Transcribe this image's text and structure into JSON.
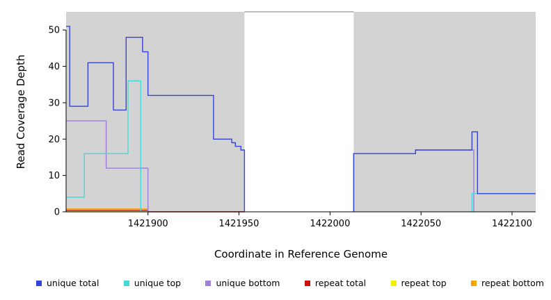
{
  "chart_data": {
    "type": "line",
    "step_style": "post",
    "title": "",
    "xlabel": "Coordinate in Reference Genome",
    "ylabel": "Read Coverage Depth",
    "xlim": [
      1421855,
      1422113
    ],
    "ylim": [
      0,
      55
    ],
    "x_ticks": [
      1421900,
      1421950,
      1422000,
      1422050,
      1422100
    ],
    "y_ticks": [
      0,
      10,
      20,
      30,
      40,
      50
    ],
    "grid": false,
    "background": "#ffffff",
    "axis_color": "#000000",
    "shaded_regions": [
      {
        "x0": 1421855,
        "x1": 1421953,
        "color": "#d3d3d3"
      },
      {
        "x0": 1422013,
        "x1": 1422113,
        "color": "#d3d3d3"
      }
    ],
    "gap_top_border": {
      "x0": 1421953,
      "x1": 1422013,
      "color": "#777777"
    },
    "series": [
      {
        "name": "unique total",
        "color": "#3344dd",
        "segments": [
          [
            [
              1421855,
              51
            ],
            [
              1421857,
              29
            ],
            [
              1421867,
              41
            ],
            [
              1421881,
              28
            ],
            [
              1421888,
              48
            ],
            [
              1421897,
              44
            ],
            [
              1421900,
              32
            ],
            [
              1421936,
              20
            ],
            [
              1421946,
              19
            ],
            [
              1421948,
              18
            ],
            [
              1421951,
              17
            ],
            [
              1421953,
              0
            ]
          ],
          [
            [
              1422013,
              0
            ],
            [
              1422013,
              16
            ],
            [
              1422047,
              17
            ],
            [
              1422078,
              22
            ],
            [
              1422081,
              5
            ],
            [
              1422113,
              5
            ]
          ]
        ]
      },
      {
        "name": "unique top",
        "color": "#45d8d8",
        "segments": [
          [
            [
              1421855,
              4
            ],
            [
              1421865,
              16
            ],
            [
              1421889,
              36
            ],
            [
              1421896,
              0
            ]
          ],
          [
            [
              1422078,
              0
            ],
            [
              1422078,
              5
            ],
            [
              1422113,
              5
            ]
          ]
        ]
      },
      {
        "name": "unique bottom",
        "color": "#9b7fd9",
        "segments": [
          [
            [
              1421855,
              25
            ],
            [
              1421877,
              12
            ],
            [
              1421900,
              0
            ]
          ],
          [
            [
              1422013,
              0
            ],
            [
              1422013,
              16
            ],
            [
              1422047,
              17
            ],
            [
              1422079,
              0
            ]
          ]
        ]
      },
      {
        "name": "repeat total",
        "color": "#cc1111",
        "segments": [
          [
            [
              1421855,
              0.4
            ],
            [
              1421900,
              0
            ],
            [
              1421953,
              0
            ]
          ]
        ]
      },
      {
        "name": "repeat top",
        "color": "#f0f000",
        "segments": [
          [
            [
              1421855,
              0
            ],
            [
              1421900,
              0
            ]
          ]
        ]
      },
      {
        "name": "repeat bottom",
        "color": "#f5a500",
        "segments": [
          [
            [
              1421855,
              0.8
            ],
            [
              1421900,
              0
            ]
          ]
        ]
      }
    ],
    "legend": {
      "position": "bottom",
      "items": [
        "unique total",
        "unique top",
        "unique bottom",
        "repeat total",
        "repeat top",
        "repeat bottom"
      ]
    }
  }
}
